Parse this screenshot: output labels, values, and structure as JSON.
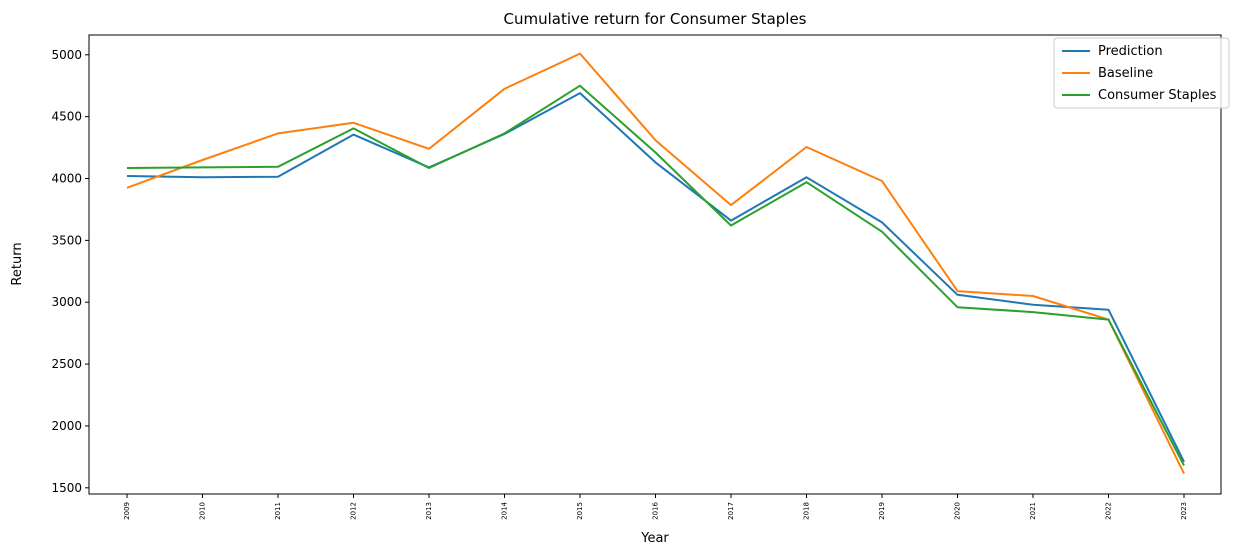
{
  "chart_data": {
    "type": "line",
    "title": "Cumulative return for Consumer Staples",
    "xlabel": "Year",
    "ylabel": "Return",
    "categories": [
      "2009",
      "2010",
      "2011",
      "2012",
      "2013",
      "2014",
      "2015",
      "2016",
      "2017",
      "2018",
      "2019",
      "2020",
      "2021",
      "2022",
      "2023"
    ],
    "ylim": [
      1450,
      5160
    ],
    "yticks": [
      1500,
      2000,
      2500,
      3000,
      3500,
      4000,
      4500,
      5000
    ],
    "grid": false,
    "legend_position": "top-right",
    "series": [
      {
        "name": "Prediction",
        "color": "#1f77b4",
        "values": [
          4020,
          4010,
          4015,
          4355,
          4090,
          4360,
          4690,
          4130,
          3660,
          4010,
          3645,
          3060,
          2980,
          2940,
          1710
        ]
      },
      {
        "name": "Baseline",
        "color": "#ff7f0e",
        "values": [
          3925,
          4150,
          4365,
          4450,
          4240,
          4725,
          5010,
          4310,
          3785,
          4255,
          3980,
          3090,
          3050,
          2860,
          1615
        ]
      },
      {
        "name": "Consumer Staples",
        "color": "#2ca02c",
        "values": [
          4085,
          4090,
          4095,
          4405,
          4085,
          4365,
          4750,
          4210,
          3620,
          3970,
          3570,
          2960,
          2920,
          2860,
          1680
        ]
      }
    ]
  }
}
